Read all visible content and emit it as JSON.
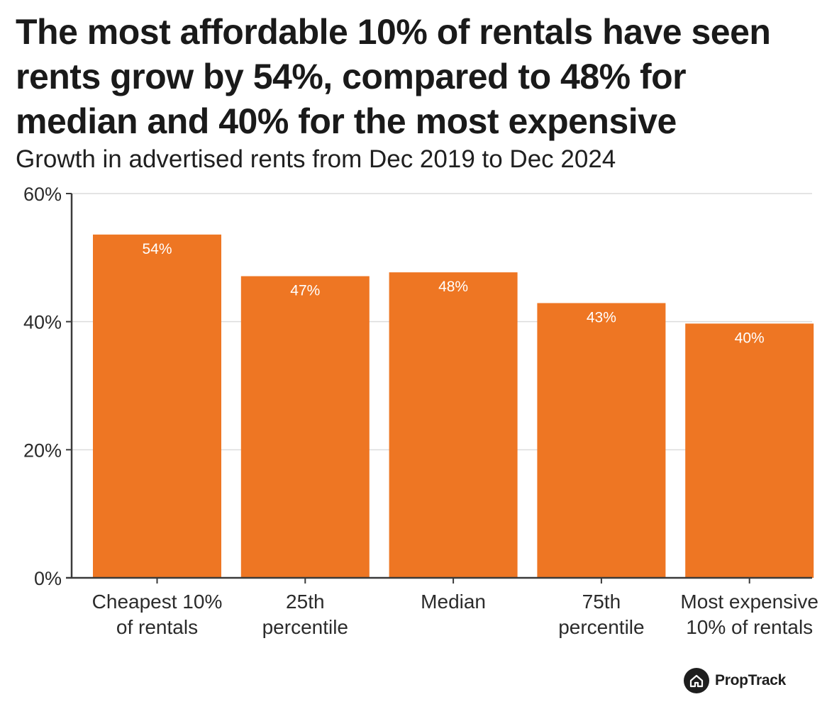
{
  "chart_data": {
    "type": "bar",
    "title": "The most affordable 10% of rentals have seen rents grow by 54%, compared to 48% for median and 40% for the most expensive",
    "subtitle": "Growth in advertised rents from Dec 2019 to Dec 2024",
    "categories": [
      [
        "Cheapest 10%",
        "of rentals"
      ],
      [
        "25th",
        "percentile"
      ],
      [
        "Median"
      ],
      [
        "75th",
        "percentile"
      ],
      [
        "Most expensive",
        "10% of rentals"
      ]
    ],
    "values": [
      53.6,
      47.1,
      47.7,
      42.9,
      39.7
    ],
    "data_labels": [
      "54%",
      "47%",
      "48%",
      "43%",
      "40%"
    ],
    "ylim": [
      0,
      60
    ],
    "yticks": [
      {
        "value": 0,
        "label": "0%"
      },
      {
        "value": 20,
        "label": "20%"
      },
      {
        "value": 40,
        "label": "40%"
      },
      {
        "value": 60,
        "label": "60%"
      }
    ],
    "xlabel": "",
    "ylabel": "",
    "grid": true,
    "bar_color": "#EE7623",
    "grid_color": "#dcdcdc",
    "axis_color": "#3a3a3a"
  },
  "brand": {
    "logo_text": "PropTrack",
    "logo_icon": "house-icon"
  }
}
